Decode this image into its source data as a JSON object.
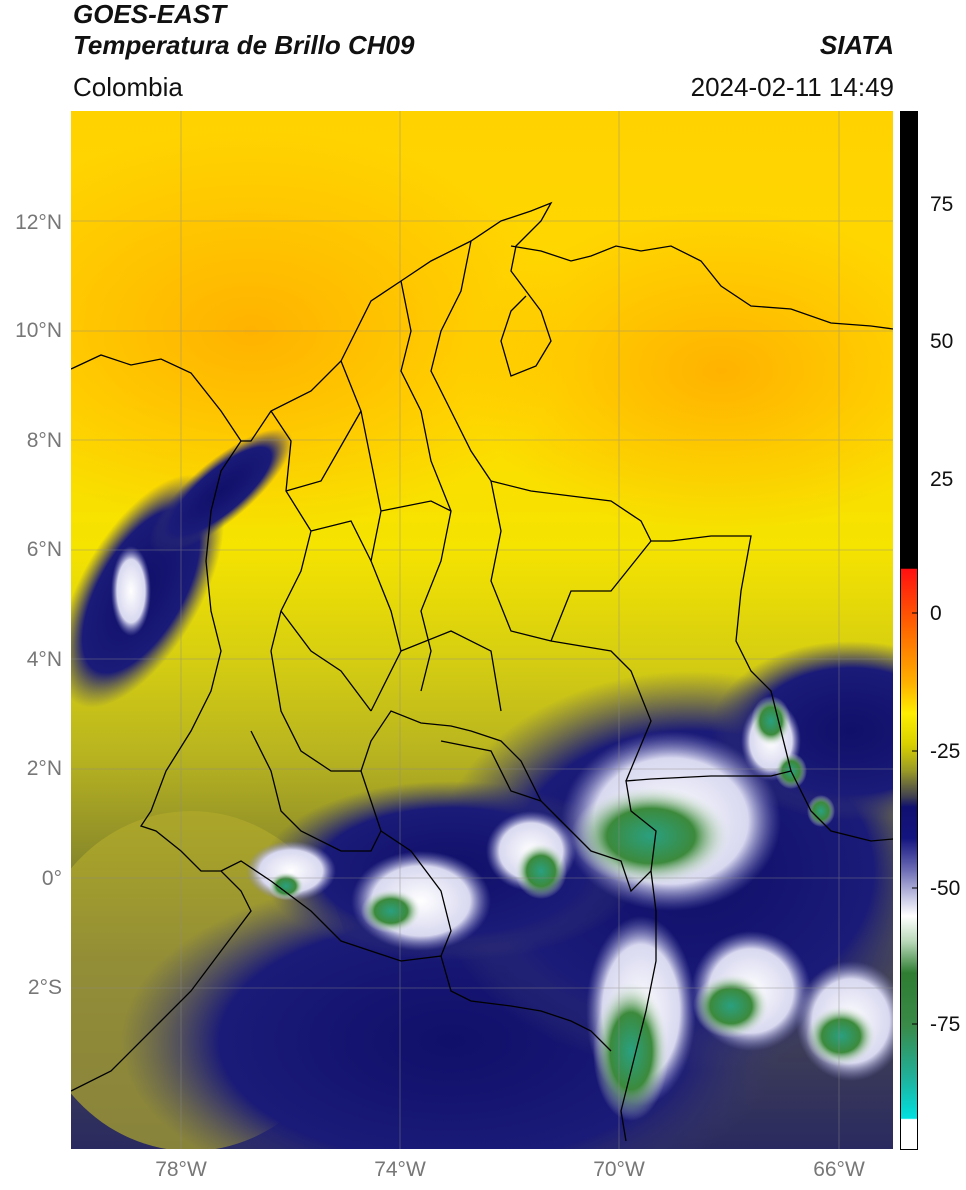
{
  "header": {
    "title_line1": "GOES-EAST",
    "title_line2": "Temperatura de Brillo CH09",
    "organization": "SIATA",
    "region": "Colombia",
    "timestamp": "2024-02-11 14:49"
  },
  "map": {
    "lat_ticks": [
      "12°N",
      "10°N",
      "8°N",
      "6°N",
      "4°N",
      "2°N",
      "0°",
      "2°S"
    ],
    "lon_ticks": [
      "78°W",
      "74°W",
      "70°W",
      "66°W"
    ],
    "extent": {
      "lon_min": -80,
      "lon_max": -65,
      "lat_min": -5,
      "lat_max": 14
    },
    "grid": true
  },
  "colorbar": {
    "ticks": [
      "75",
      "50",
      "25",
      "0",
      "-25",
      "-50",
      "-75"
    ],
    "range": [
      -95,
      90
    ],
    "colors": {
      "black": "#000000",
      "red": "#ff1010",
      "orange": "#ff9a00",
      "yellow": "#ffee00",
      "olive": "#9a9a26",
      "navy": "#101070",
      "white": "#ffffff",
      "green": "#2e7d32",
      "teal": "#20c0a0",
      "cyan": "#00e0e0"
    }
  }
}
